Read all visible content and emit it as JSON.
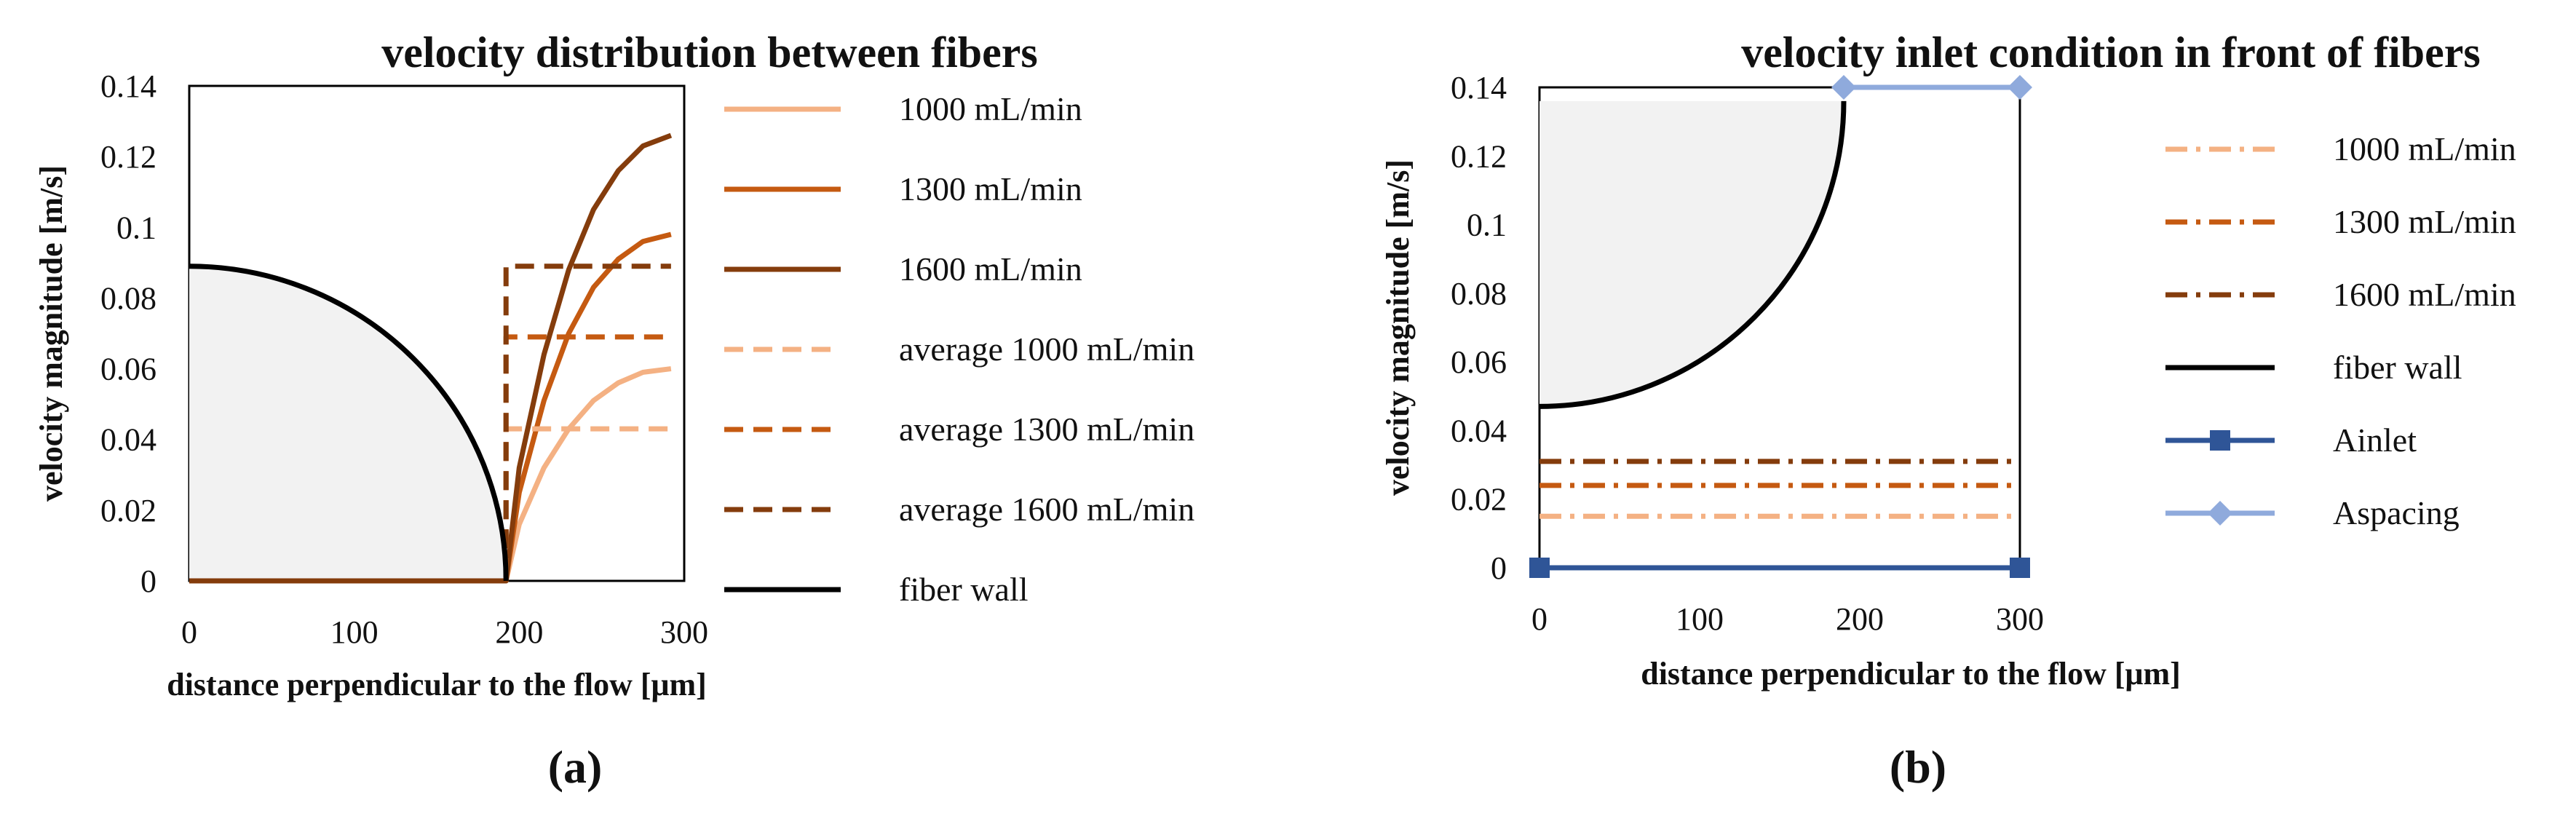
{
  "chart_data": [
    {
      "panel": "(a)",
      "type": "line",
      "title": "velocity distribution between fibers",
      "xlabel": "distance perpendicular to the flow [μm]",
      "ylabel": "velocity magnitude [m/s]",
      "xlim": [
        0,
        300
      ],
      "ylim": [
        0,
        0.14
      ],
      "xticks": [
        "0",
        "100",
        "200",
        "300"
      ],
      "yticks": [
        "0",
        "0.02",
        "0.04",
        "0.06",
        "0.08",
        "0.1",
        "0.12",
        "0.14"
      ],
      "grid": false,
      "legend": [
        "1000 mL/min",
        "1300 mL/min",
        "1600 mL/min",
        "average 1000 mL/min",
        "average 1300 mL/min",
        "average 1600 mL/min",
        "fiber wall"
      ],
      "series": [
        {
          "name": "1000 mL/min",
          "color": "#f4b183",
          "style": "solid",
          "x": [
            0,
            192,
            192,
            200,
            215,
            230,
            245,
            260,
            275,
            292
          ],
          "y": [
            0,
            0,
            0,
            0.016,
            0.032,
            0.043,
            0.051,
            0.056,
            0.059,
            0.06
          ]
        },
        {
          "name": "1300 mL/min",
          "color": "#c55a11",
          "style": "solid",
          "x": [
            0,
            192,
            192,
            200,
            215,
            230,
            245,
            260,
            275,
            292
          ],
          "y": [
            0,
            0,
            0,
            0.025,
            0.051,
            0.07,
            0.083,
            0.091,
            0.096,
            0.098
          ]
        },
        {
          "name": "1600 mL/min",
          "color": "#843c0c",
          "style": "solid",
          "x": [
            0,
            192,
            192,
            200,
            215,
            230,
            245,
            260,
            275,
            292
          ],
          "y": [
            0,
            0,
            0,
            0.032,
            0.064,
            0.088,
            0.105,
            0.116,
            0.123,
            0.126
          ]
        },
        {
          "name": "average 1000 mL/min",
          "color": "#f4b183",
          "style": "dashed",
          "x": [
            0,
            192,
            192,
            292
          ],
          "y": [
            0,
            0,
            0.043,
            0.043
          ]
        },
        {
          "name": "average 1300 mL/min",
          "color": "#c55a11",
          "style": "dashed",
          "x": [
            0,
            192,
            192,
            292
          ],
          "y": [
            0,
            0,
            0.069,
            0.069
          ]
        },
        {
          "name": "average 1600 mL/min",
          "color": "#843c0c",
          "style": "dashed",
          "x": [
            0,
            192,
            192,
            292
          ],
          "y": [
            0,
            0,
            0.089,
            0.089
          ]
        },
        {
          "name": "fiber wall",
          "color": "#000000",
          "style": "arc",
          "center": [
            0,
            0
          ],
          "radius_x": 192,
          "radius_y": 0.089,
          "fill": "#f2f2f2"
        }
      ]
    },
    {
      "panel": "(b)",
      "type": "line",
      "title": "velocity inlet condition in front of fibers",
      "xlabel": "distance perpendicular to the flow [μm]",
      "ylabel": "velocity magnitude [m/s]",
      "xlim": [
        0,
        300
      ],
      "ylim": [
        0,
        0.14
      ],
      "xticks": [
        "0",
        "100",
        "200",
        "300"
      ],
      "yticks": [
        "0",
        "0.02",
        "0.04",
        "0.06",
        "0.08",
        "0.1",
        "0.12",
        "0.14"
      ],
      "grid": false,
      "legend": [
        "1000 mL/min",
        "1300 mL/min",
        "1600 mL/min",
        "fiber wall",
        "Ainlet",
        "Aspacing"
      ],
      "series": [
        {
          "name": "1000 mL/min",
          "color": "#f4b183",
          "style": "dashdot",
          "x": [
            0,
            300
          ],
          "y": [
            0.015,
            0.015
          ]
        },
        {
          "name": "1300 mL/min",
          "color": "#c55a11",
          "style": "dashdot",
          "x": [
            0,
            300
          ],
          "y": [
            0.024,
            0.024
          ]
        },
        {
          "name": "1600 mL/min",
          "color": "#843c0c",
          "style": "dashdot",
          "x": [
            0,
            300
          ],
          "y": [
            0.031,
            0.031
          ]
        },
        {
          "name": "fiber wall",
          "color": "#000000",
          "style": "arc",
          "center": [
            0,
            0.136
          ],
          "radius_x": 190,
          "radius_y": 0.089,
          "fill": "#f2f2f2"
        },
        {
          "name": "Ainlet",
          "color": "#2f5597",
          "style": "solid",
          "marker": "square",
          "x": [
            0,
            300
          ],
          "y": [
            0,
            0
          ]
        },
        {
          "name": "Aspacing",
          "color": "#8faadc",
          "style": "solid",
          "marker": "diamond",
          "x": [
            190,
            300
          ],
          "y": [
            0.14,
            0.14
          ]
        }
      ]
    }
  ]
}
